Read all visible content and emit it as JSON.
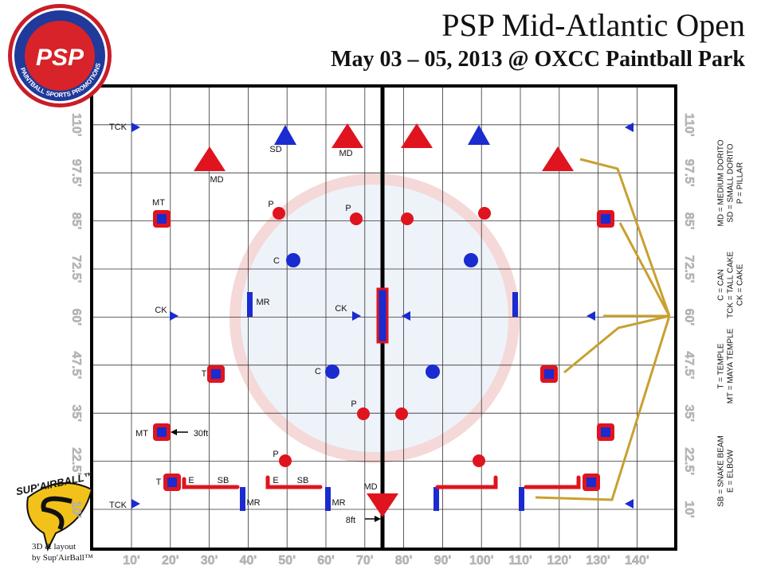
{
  "header": {
    "title": "PSP Mid-Atlantic Open",
    "subtitle": "May 03 – 05, 2013 @ OXCC Paintball Park"
  },
  "x_axis": [
    "10'",
    "20'",
    "30'",
    "40'",
    "50'",
    "60'",
    "70'",
    "80'",
    "90'",
    "100'",
    "110'",
    "120'",
    "130'",
    "140'"
  ],
  "y_axis": [
    "10'",
    "22.5'",
    "35'",
    "47.5'",
    "60'",
    "72.5'",
    "85'",
    "97.5'",
    "110'"
  ],
  "legend": [
    [
      "MD = MEDIUM DORITO",
      "SD = SMALL DORITO",
      "P = PILLAR"
    ],
    [
      "C = CAN",
      "TCK = TALL CAKE",
      "CK = CAKE"
    ],
    [
      "T = TEMPLE",
      "MT = MAYA TEMPLE"
    ],
    [
      "SB = SNAKE BEAM",
      "E = ELBOW"
    ]
  ],
  "field_labels": [
    "TCK",
    "SD",
    "MD",
    "MD",
    "MT",
    "P",
    "P",
    "C",
    "MR",
    "CK",
    "CK",
    "T",
    "C",
    "P",
    "MT",
    "30ft",
    "P",
    "T",
    "E",
    "SB",
    "E",
    "SB",
    "MR",
    "MR",
    "MD",
    "8ft",
    "TCK"
  ],
  "logos": {
    "psp": "PSP",
    "psp_ring": "PAINTBALL SPORTS PROMOTIONS",
    "sup": "SUP'AIRBALL™",
    "credit_1": "3D & layout",
    "credit_2": "by Sup'AirBall™"
  }
}
